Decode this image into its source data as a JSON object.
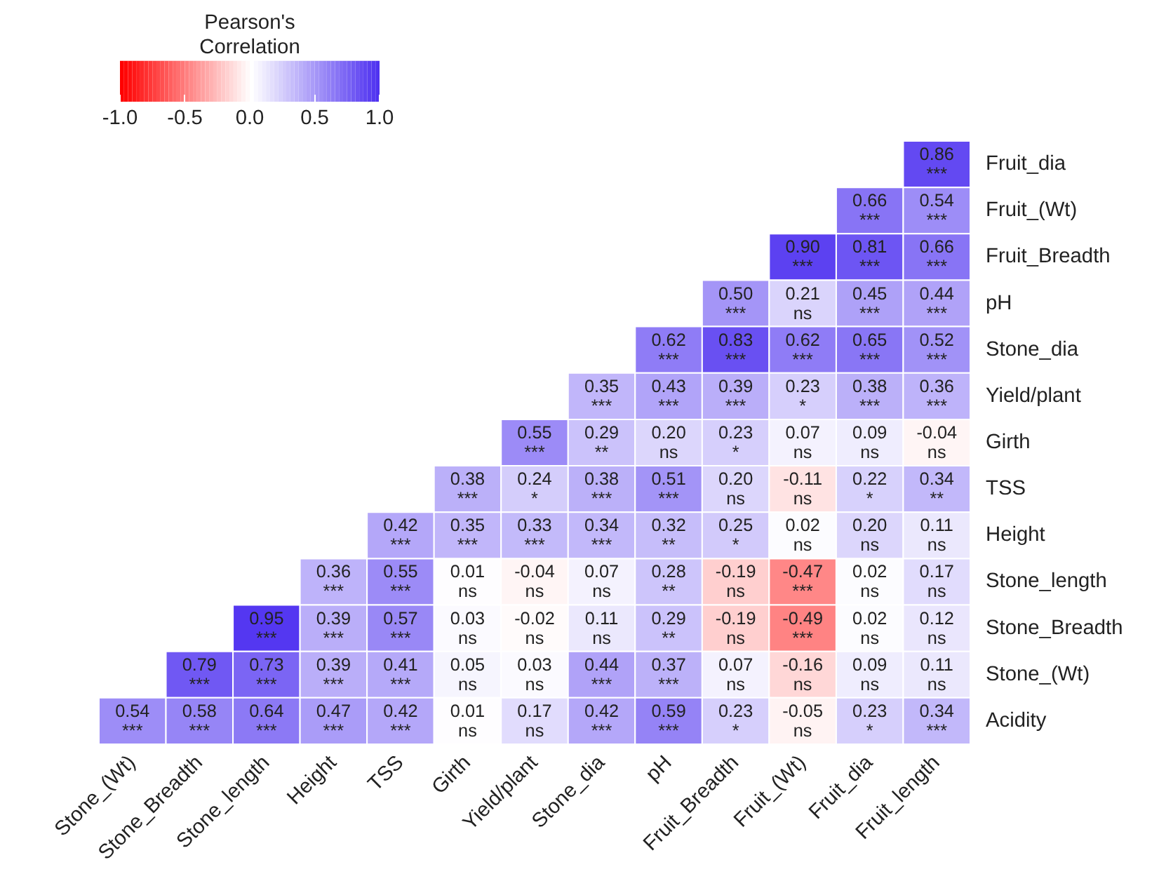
{
  "chart_data": {
    "type": "heatmap",
    "clabel": "Pearson's\nCorrelation",
    "clim": [
      -1,
      1
    ],
    "cticks": [
      {
        "value": -1,
        "label": "-1.0"
      },
      {
        "value": -0.5,
        "label": "-0.5"
      },
      {
        "value": 0,
        "label": "0.0"
      },
      {
        "value": 0.5,
        "label": "0.5"
      },
      {
        "value": 1,
        "label": "1.0"
      }
    ],
    "categories": [
      "Stone_(Wt)",
      "Stone_Breadth",
      "Stone_length",
      "Height",
      "TSS",
      "Girth",
      "Yield/plant",
      "Stone_dia",
      "pH",
      "Fruit_Breadth",
      "Fruit_(Wt)",
      "Fruit_dia",
      "Fruit_length"
    ],
    "y_categories": [
      "Fruit_dia",
      "Fruit_(Wt)",
      "Fruit_Breadth",
      "pH",
      "Stone_dia",
      "Yield/plant",
      "Girth",
      "TSS",
      "Height",
      "Stone_length",
      "Stone_Breadth",
      "Stone_(Wt)",
      "Acidity"
    ],
    "cells": [
      [
        null,
        null,
        null,
        null,
        null,
        null,
        null,
        null,
        null,
        null,
        null,
        null,
        0.86
      ],
      [
        null,
        null,
        null,
        null,
        null,
        null,
        null,
        null,
        null,
        null,
        null,
        0.66,
        0.54
      ],
      [
        null,
        null,
        null,
        null,
        null,
        null,
        null,
        null,
        null,
        null,
        0.9,
        0.81,
        0.66
      ],
      [
        null,
        null,
        null,
        null,
        null,
        null,
        null,
        null,
        null,
        0.5,
        0.21,
        0.45,
        0.44
      ],
      [
        null,
        null,
        null,
        null,
        null,
        null,
        null,
        null,
        0.62,
        0.83,
        0.62,
        0.65,
        0.52
      ],
      [
        null,
        null,
        null,
        null,
        null,
        null,
        null,
        0.35,
        0.43,
        0.39,
        0.23,
        0.38,
        0.36
      ],
      [
        null,
        null,
        null,
        null,
        null,
        null,
        0.55,
        0.29,
        0.2,
        0.23,
        0.07,
        0.09,
        -0.04
      ],
      [
        null,
        null,
        null,
        null,
        null,
        0.38,
        0.24,
        0.38,
        0.51,
        0.2,
        -0.11,
        0.22,
        0.34
      ],
      [
        null,
        null,
        null,
        null,
        0.42,
        0.35,
        0.33,
        0.34,
        0.32,
        0.25,
        0.02,
        0.2,
        0.11
      ],
      [
        null,
        null,
        null,
        0.36,
        0.55,
        0.01,
        -0.04,
        0.07,
        0.28,
        -0.19,
        -0.47,
        0.02,
        0.17
      ],
      [
        null,
        null,
        0.95,
        0.39,
        0.57,
        0.03,
        -0.02,
        0.11,
        0.29,
        -0.19,
        -0.49,
        0.02,
        0.12
      ],
      [
        null,
        0.79,
        0.73,
        0.39,
        0.41,
        0.05,
        0.03,
        0.44,
        0.37,
        0.07,
        -0.16,
        0.09,
        0.11
      ],
      [
        0.54,
        0.58,
        0.64,
        0.47,
        0.42,
        0.01,
        0.17,
        0.42,
        0.59,
        0.23,
        -0.05,
        0.23,
        0.34
      ]
    ],
    "cell_labels": [
      [
        null,
        null,
        null,
        null,
        null,
        null,
        null,
        null,
        null,
        null,
        null,
        null,
        "0.86\n***"
      ],
      [
        null,
        null,
        null,
        null,
        null,
        null,
        null,
        null,
        null,
        null,
        null,
        "0.66\n***",
        "0.54\n***"
      ],
      [
        null,
        null,
        null,
        null,
        null,
        null,
        null,
        null,
        null,
        null,
        "0.90\n***",
        "0.81\n***",
        "0.66\n***"
      ],
      [
        null,
        null,
        null,
        null,
        null,
        null,
        null,
        null,
        null,
        "0.50\n***",
        "0.21\nns",
        "0.45\n***",
        "0.44\n***"
      ],
      [
        null,
        null,
        null,
        null,
        null,
        null,
        null,
        null,
        "0.62\n***",
        "0.83\n***",
        "0.62\n***",
        "0.65\n***",
        "0.52\n***"
      ],
      [
        null,
        null,
        null,
        null,
        null,
        null,
        null,
        "0.35\n***",
        "0.43\n***",
        "0.39\n***",
        "0.23\n*",
        "0.38\n***",
        "0.36\n***"
      ],
      [
        null,
        null,
        null,
        null,
        null,
        null,
        "0.55\n***",
        "0.29\n**",
        "0.20\nns",
        "0.23\n*",
        "0.07\nns",
        "0.09\nns",
        "-0.04\nns"
      ],
      [
        null,
        null,
        null,
        null,
        null,
        "0.38\n***",
        "0.24\n*",
        "0.38\n***",
        "0.51\n***",
        "0.20\nns",
        "-0.11\nns",
        "0.22\n*",
        "0.34\n**"
      ],
      [
        null,
        null,
        null,
        null,
        "0.42\n***",
        "0.35\n***",
        "0.33\n***",
        "0.34\n***",
        "0.32\n**",
        "0.25\n*",
        "0.02\nns",
        "0.20\nns",
        "0.11\nns"
      ],
      [
        null,
        null,
        null,
        "0.36\n***",
        "0.55\n***",
        "0.01\nns",
        "-0.04\nns",
        "0.07\nns",
        "0.28\n**",
        "-0.19\nns",
        "-0.47\n***",
        "0.02\nns",
        "0.17\nns"
      ],
      [
        null,
        null,
        "0.95\n***",
        "0.39\n***",
        "0.57\n***",
        "0.03\nns",
        "-0.02\nns",
        "0.11\nns",
        "0.29\n**",
        "-0.19\nns",
        "-0.49\n***",
        "0.02\nns",
        "0.12\nns"
      ],
      [
        null,
        "0.79\n***",
        "0.73\n***",
        "0.39\n***",
        "0.41\n***",
        "0.05\nns",
        "0.03\nns",
        "0.44\n***",
        "0.37\n***",
        "0.07\nns",
        "-0.16\nns",
        "0.09\nns",
        "0.11\nns"
      ],
      [
        "0.54\n***",
        "0.58\n***",
        "0.64\n***",
        "0.47\n***",
        "0.42\n***",
        "0.01\nns",
        "0.17\nns",
        "0.42\n***",
        "0.59\n***",
        "0.23\n*",
        "-0.05\nns",
        "0.23\n*",
        "0.34\n***"
      ]
    ]
  }
}
